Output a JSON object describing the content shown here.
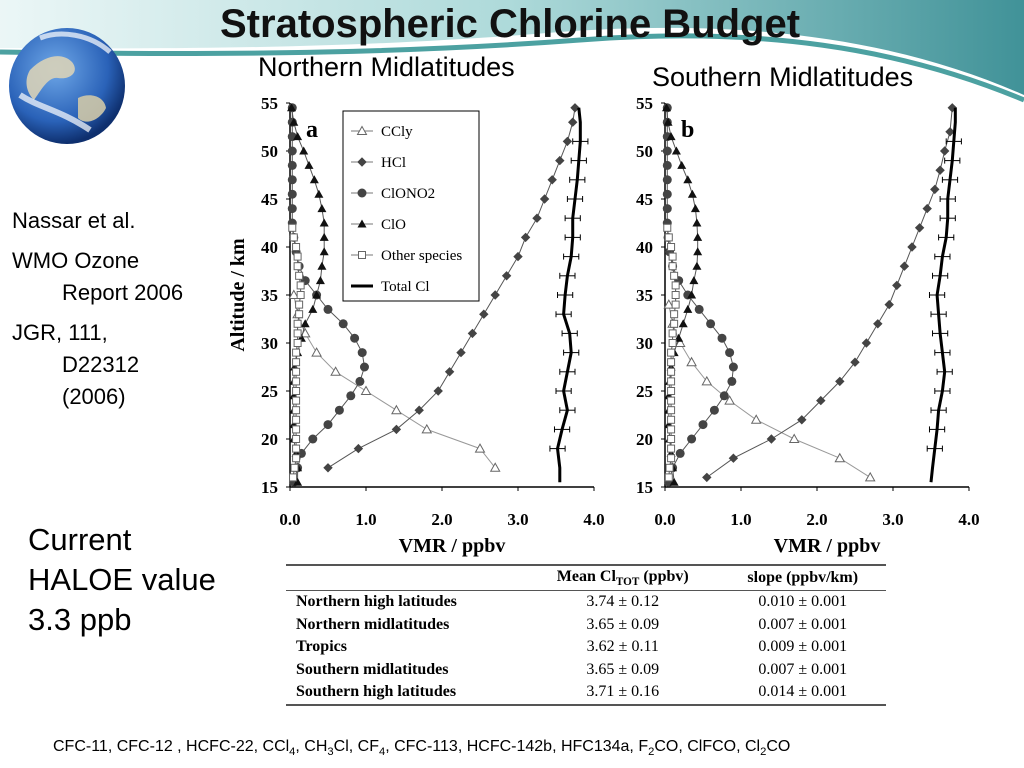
{
  "slide": {
    "title": "Stratospheric Chlorine Budget",
    "panel_titles": [
      "Northern Midlatitudes",
      "Southern Midlatitudes"
    ],
    "references": {
      "authors": "Nassar et al.",
      "wmo_line1": "WMO Ozone",
      "wmo_line2": "Report 2006",
      "jgr_line1": "JGR, 111,",
      "jgr_line2": "D22312",
      "jgr_line3": "(2006)"
    },
    "haloe_note": {
      "line1": "Current",
      "line2": "HALOE value",
      "line3": "3.3 ppb"
    },
    "footer_parts": [
      "CFC-11, CFC-12 , HCFC-22, CCl",
      "4",
      ", CH",
      "3",
      "Cl, CF",
      "4",
      ", CFC-113, HCFC-142b, HFC134a, F",
      "2",
      "CO, ClFCO, Cl",
      "2",
      "CO"
    ],
    "colors": {
      "globe_ocean": "#2a62b8",
      "swoosh_teal": "#1f8a8a",
      "swoosh_light": "#cfeaea",
      "text": "#000000"
    },
    "icons": [
      "earth-globe-icon"
    ]
  },
  "chart_data": [
    {
      "type": "line",
      "panel_label": "a",
      "xlabel": "VMR / ppbv",
      "ylabel": "Altitude / km",
      "xlim": [
        0,
        4
      ],
      "ylim": [
        15,
        55
      ],
      "xticks": [
        "0.0",
        "1.0",
        "2.0",
        "3.0",
        "4.0"
      ],
      "yticks": [
        "15",
        "20",
        "25",
        "30",
        "35",
        "40",
        "45",
        "50",
        "55"
      ],
      "legend": {
        "position": "top-center",
        "entries": [
          "CCly",
          "HCl",
          "ClONO2",
          "ClO",
          "Other species",
          "Total Cl"
        ]
      },
      "series": [
        {
          "name": "CCly",
          "marker": "open-triangle",
          "altitudes": [
            17,
            19,
            21,
            23,
            25,
            27,
            29,
            31,
            33,
            35
          ],
          "values": [
            2.7,
            2.5,
            1.8,
            1.4,
            1.0,
            0.6,
            0.35,
            0.2,
            0.1,
            0.05
          ]
        },
        {
          "name": "HCl",
          "marker": "diamond",
          "altitudes": [
            17,
            19,
            21,
            23,
            25,
            27,
            29,
            31,
            33,
            35,
            37,
            39,
            41,
            43,
            45,
            47,
            49,
            51,
            53,
            54.5
          ],
          "values": [
            0.5,
            0.9,
            1.4,
            1.7,
            1.95,
            2.1,
            2.25,
            2.4,
            2.55,
            2.7,
            2.85,
            3.0,
            3.1,
            3.25,
            3.35,
            3.45,
            3.55,
            3.65,
            3.72,
            3.75
          ]
        },
        {
          "name": "ClONO2",
          "marker": "circle",
          "altitudes": [
            15.5,
            17,
            18.5,
            20,
            21.5,
            23,
            24.5,
            26,
            27.5,
            29,
            30.5,
            32,
            33.5,
            35,
            36.5,
            38,
            39.5,
            41,
            42.5,
            44,
            45.5,
            47,
            48.5,
            50,
            51.5,
            53,
            54.5
          ],
          "values": [
            0.05,
            0.1,
            0.15,
            0.3,
            0.5,
            0.65,
            0.8,
            0.92,
            0.98,
            0.95,
            0.85,
            0.7,
            0.5,
            0.35,
            0.2,
            0.12,
            0.08,
            0.05,
            0.03,
            0.03,
            0.03,
            0.03,
            0.03,
            0.03,
            0.03,
            0.03,
            0.03
          ]
        },
        {
          "name": "ClO",
          "marker": "filled-triangle",
          "altitudes": [
            15.5,
            17,
            18.5,
            20,
            21.5,
            23,
            24.5,
            26,
            27.5,
            29,
            30.5,
            32,
            33.5,
            35,
            36.5,
            38,
            39.5,
            41,
            42.5,
            44,
            45.5,
            47,
            48.5,
            50,
            51.5,
            53,
            54.5
          ],
          "values": [
            0.1,
            0.1,
            0.08,
            0.05,
            0.05,
            0.05,
            0.05,
            0.05,
            0.06,
            0.1,
            0.15,
            0.2,
            0.3,
            0.35,
            0.4,
            0.42,
            0.45,
            0.45,
            0.45,
            0.42,
            0.38,
            0.32,
            0.25,
            0.18,
            0.1,
            0.05,
            0.02
          ]
        },
        {
          "name": "Other species",
          "marker": "open-square",
          "altitudes": [
            16,
            17,
            18,
            19,
            20,
            21,
            22,
            23,
            24,
            25,
            26,
            27,
            28,
            29,
            30,
            31,
            32,
            33,
            34,
            35,
            36,
            37,
            38,
            39,
            40,
            41,
            42
          ],
          "values": [
            0.04,
            0.06,
            0.08,
            0.08,
            0.08,
            0.08,
            0.08,
            0.08,
            0.08,
            0.08,
            0.08,
            0.08,
            0.08,
            0.08,
            0.1,
            0.1,
            0.1,
            0.12,
            0.12,
            0.14,
            0.14,
            0.12,
            0.1,
            0.1,
            0.08,
            0.05,
            0.03
          ]
        },
        {
          "name": "Total Cl",
          "marker": "line-with-errorbars",
          "error": 0.1,
          "altitudes": [
            15.5,
            17,
            19,
            21,
            23,
            25,
            27,
            29,
            31,
            33,
            35,
            37,
            39,
            41,
            43,
            45,
            47,
            49,
            51,
            53,
            54.5
          ],
          "values": [
            3.55,
            3.55,
            3.52,
            3.58,
            3.65,
            3.6,
            3.65,
            3.7,
            3.68,
            3.6,
            3.62,
            3.65,
            3.7,
            3.72,
            3.72,
            3.75,
            3.78,
            3.8,
            3.82,
            3.82,
            3.8
          ]
        }
      ]
    },
    {
      "type": "line",
      "panel_label": "b",
      "xlabel": "VMR / ppbv",
      "ylabel": "",
      "xlim": [
        0,
        4
      ],
      "ylim": [
        15,
        55
      ],
      "xticks": [
        "0.0",
        "1.0",
        "2.0",
        "3.0",
        "4.0"
      ],
      "yticks": [
        "15",
        "20",
        "25",
        "30",
        "35",
        "40",
        "45",
        "50",
        "55"
      ],
      "series": [
        {
          "name": "CCly",
          "marker": "open-triangle",
          "altitudes": [
            16,
            18,
            20,
            22,
            24,
            26,
            28,
            30,
            32,
            34
          ],
          "values": [
            2.7,
            2.3,
            1.7,
            1.2,
            0.85,
            0.55,
            0.35,
            0.2,
            0.1,
            0.05
          ]
        },
        {
          "name": "HCl",
          "marker": "diamond",
          "altitudes": [
            16,
            18,
            20,
            22,
            24,
            26,
            28,
            30,
            32,
            34,
            36,
            38,
            40,
            42,
            44,
            46,
            48,
            50,
            52,
            54.5
          ],
          "values": [
            0.55,
            0.9,
            1.4,
            1.8,
            2.05,
            2.3,
            2.5,
            2.65,
            2.8,
            2.95,
            3.05,
            3.15,
            3.25,
            3.35,
            3.45,
            3.55,
            3.62,
            3.68,
            3.75,
            3.78
          ]
        },
        {
          "name": "ClONO2",
          "marker": "circle",
          "altitudes": [
            15.5,
            17,
            18.5,
            20,
            21.5,
            23,
            24.5,
            26,
            27.5,
            29,
            30.5,
            32,
            33.5,
            35,
            36.5,
            38,
            39.5,
            41,
            42.5,
            44,
            45.5,
            47,
            48.5,
            50,
            51.5,
            53,
            54.5
          ],
          "values": [
            0.05,
            0.1,
            0.2,
            0.35,
            0.5,
            0.65,
            0.78,
            0.88,
            0.9,
            0.85,
            0.75,
            0.6,
            0.45,
            0.3,
            0.18,
            0.1,
            0.06,
            0.04,
            0.03,
            0.03,
            0.03,
            0.03,
            0.03,
            0.03,
            0.03,
            0.03,
            0.03
          ]
        },
        {
          "name": "ClO",
          "marker": "filled-triangle",
          "altitudes": [
            15.5,
            17,
            18.5,
            20,
            21.5,
            23,
            24.5,
            26,
            27.5,
            29,
            30.5,
            32,
            33.5,
            35,
            36.5,
            38,
            39.5,
            41,
            42.5,
            44,
            45.5,
            47,
            48.5,
            50,
            51.5,
            53,
            54.5
          ],
          "values": [
            0.12,
            0.1,
            0.08,
            0.06,
            0.05,
            0.05,
            0.05,
            0.06,
            0.08,
            0.12,
            0.18,
            0.24,
            0.3,
            0.35,
            0.38,
            0.42,
            0.43,
            0.43,
            0.42,
            0.4,
            0.36,
            0.3,
            0.22,
            0.15,
            0.08,
            0.04,
            0.02
          ]
        },
        {
          "name": "Other species",
          "marker": "open-square",
          "altitudes": [
            16,
            17,
            18,
            19,
            20,
            21,
            22,
            23,
            24,
            25,
            26,
            27,
            28,
            29,
            30,
            31,
            32,
            33,
            34,
            35,
            36,
            37,
            38,
            39,
            40,
            41,
            42
          ],
          "values": [
            0.05,
            0.06,
            0.08,
            0.08,
            0.08,
            0.08,
            0.08,
            0.08,
            0.08,
            0.08,
            0.08,
            0.08,
            0.08,
            0.08,
            0.1,
            0.1,
            0.12,
            0.12,
            0.14,
            0.14,
            0.14,
            0.12,
            0.1,
            0.1,
            0.08,
            0.05,
            0.03
          ]
        },
        {
          "name": "Total Cl",
          "marker": "line-with-errorbars",
          "error": 0.1,
          "altitudes": [
            15.5,
            17,
            19,
            21,
            23,
            25,
            27,
            29,
            31,
            33,
            35,
            37,
            39,
            41,
            43,
            45,
            47,
            49,
            51,
            53,
            54.5
          ],
          "values": [
            3.5,
            3.52,
            3.55,
            3.58,
            3.6,
            3.65,
            3.68,
            3.65,
            3.62,
            3.6,
            3.58,
            3.62,
            3.65,
            3.7,
            3.72,
            3.72,
            3.75,
            3.78,
            3.8,
            3.82,
            3.82
          ]
        }
      ]
    },
    {
      "type": "table",
      "columns": [
        "",
        "Mean Cl",
        "TOT",
        " (ppbv)",
        "slope (ppbv/km)"
      ],
      "rows": [
        [
          "Northern high latitudes",
          "3.74 ± 0.12",
          "0.010 ± 0.001"
        ],
        [
          "Northern midlatitudes",
          "3.65 ± 0.09",
          "0.007 ± 0.001"
        ],
        [
          "Tropics",
          "3.62 ± 0.11",
          "0.009 ± 0.001"
        ],
        [
          "Southern midlatitudes",
          "3.65 ± 0.09",
          "0.007 ± 0.001"
        ],
        [
          "Southern high latitudes",
          "3.71 ± 0.16",
          "0.014 ± 0.001"
        ]
      ]
    }
  ]
}
